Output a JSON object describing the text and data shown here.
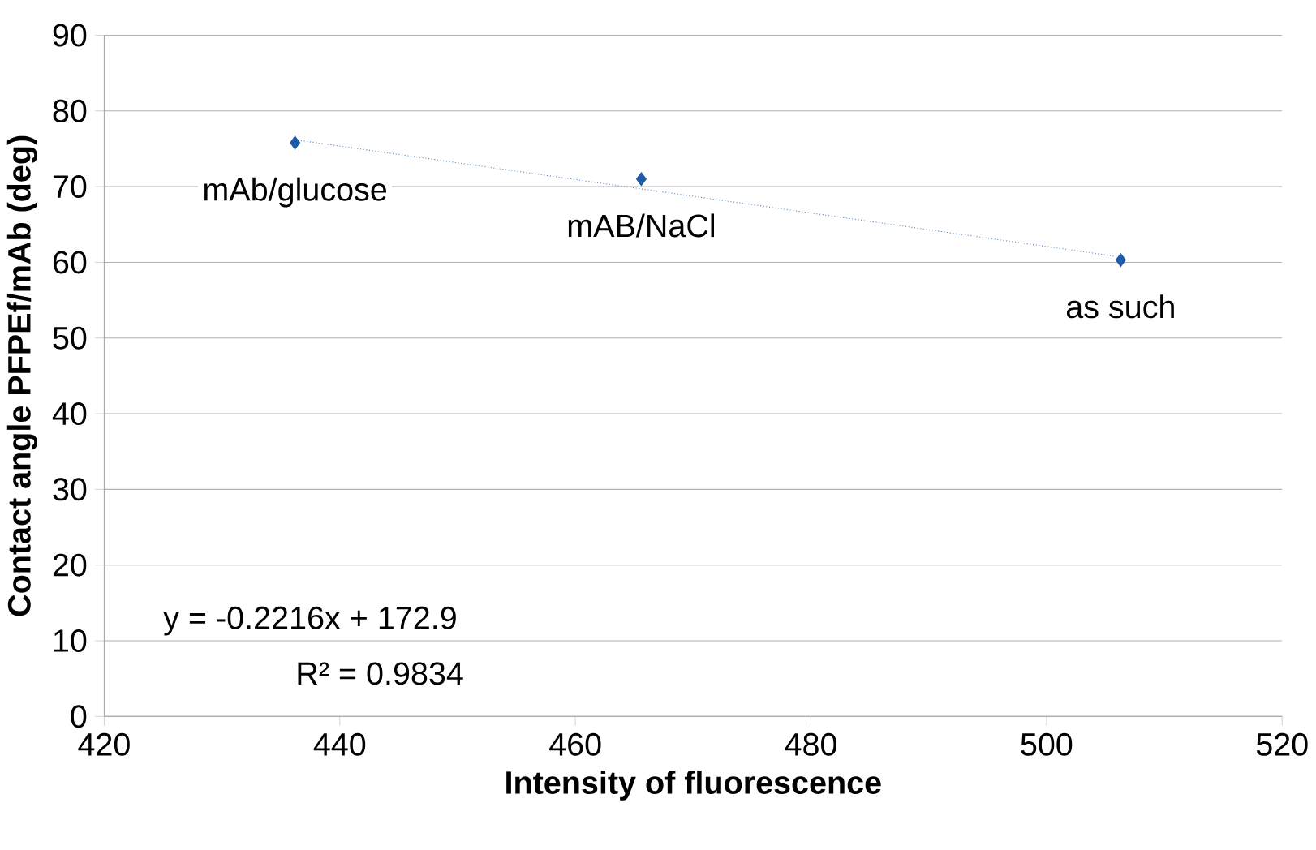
{
  "chart_data": {
    "type": "scatter",
    "xlabel": "Intensity of fluorescence",
    "ylabel": "Contact angle PFPEf/mAb (deg)",
    "series": [
      {
        "x": [
          436.2,
          465.6,
          506.3
        ],
        "values": [
          75.8,
          71.0,
          60.3
        ],
        "color": "#1f5aa6",
        "marker": "diamond"
      },
      {
        "type": "line",
        "x": [
          436.2,
          506.3
        ],
        "values": [
          76.2,
          60.7
        ],
        "color": "#4a7ebb",
        "line_style": "dotted"
      }
    ],
    "xlim": [
      420,
      520
    ],
    "xticks": [
      420,
      440,
      460,
      480,
      500,
      520
    ],
    "ylim": [
      0,
      90
    ],
    "yticks": [
      0,
      10,
      20,
      30,
      40,
      50,
      60,
      70,
      80,
      90
    ],
    "grid": "y",
    "annotations": [
      {
        "text": "mAb/glucose",
        "x": 436.2,
        "y": 75.8
      },
      {
        "text": "mAB/NaCl",
        "x": 465.6,
        "y": 71.0
      },
      {
        "text": "as such",
        "x": 506.3,
        "y": 60.3
      },
      "y = -0.2216x + 172.9",
      "R² = 0.9834"
    ]
  }
}
